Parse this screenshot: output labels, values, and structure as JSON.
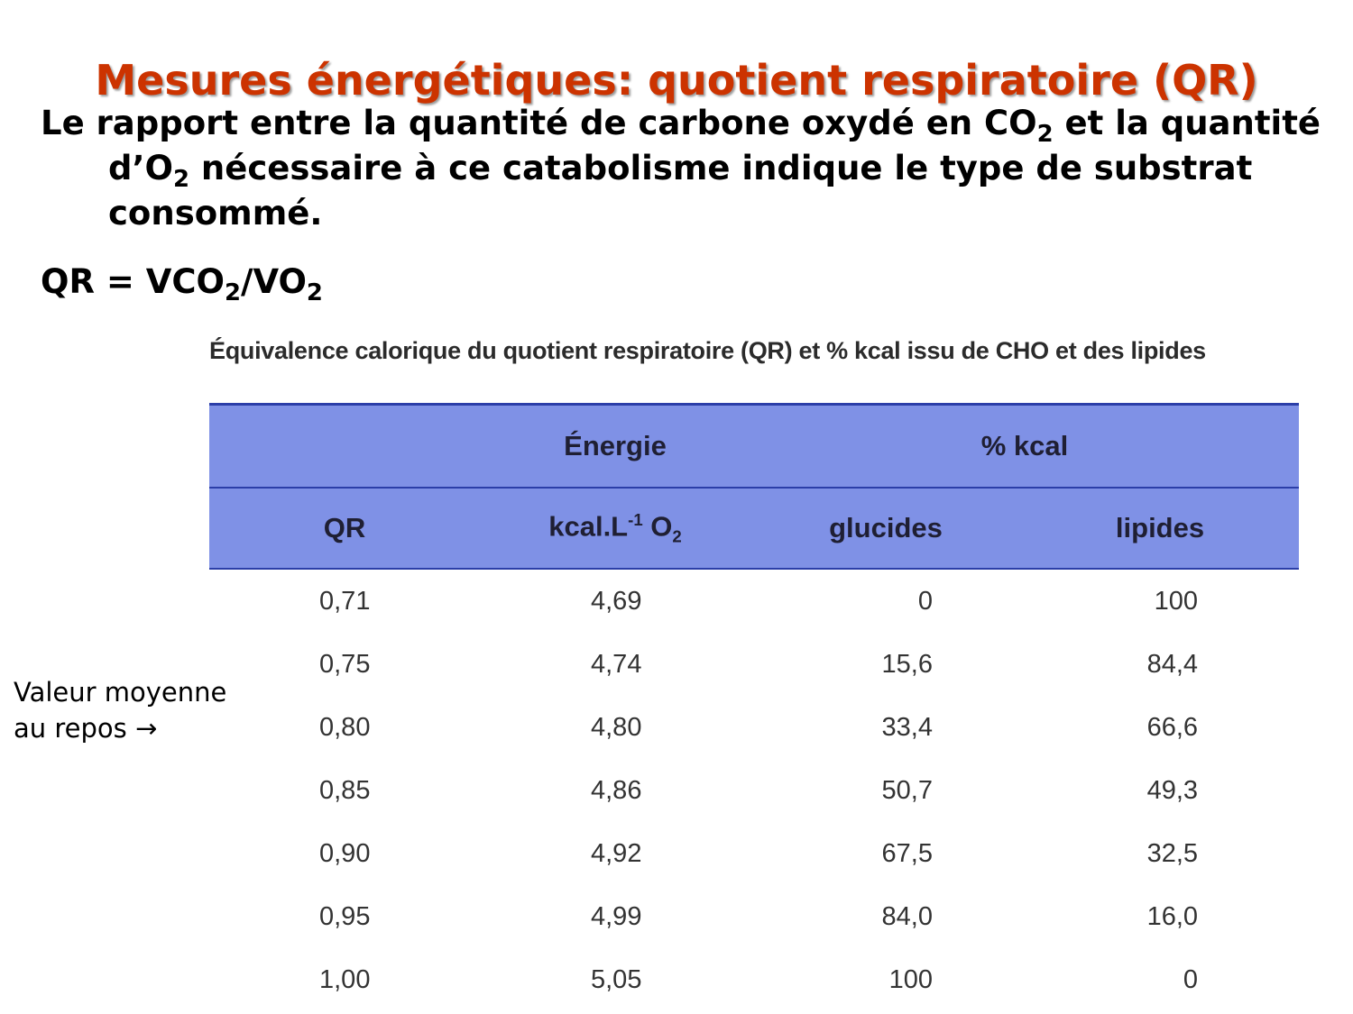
{
  "title": "Mesures énergétiques: quotient respiratoire (QR)",
  "definition": {
    "part1": "Le rapport entre la quantité de carbone oxydé en CO",
    "sub1": "2",
    "part2": " et la quantité d’O",
    "sub2": "2",
    "part3": " nécessaire à ce catabolisme indique le type de substrat consommé."
  },
  "formula": {
    "lhs": "QR = VCO",
    "sub1": "2",
    "mid": "/VO",
    "sub2": "2"
  },
  "table": {
    "caption": "Équivalence calorique du quotient respiratoire (QR) et % kcal issu de CHO et des lipides",
    "group_headers": {
      "energy": "Énergie",
      "percent": "% kcal"
    },
    "column_headers": {
      "qr": "QR",
      "energy_unit_base": "kcal.L",
      "energy_unit_exp": "-1",
      "energy_unit_o": " O",
      "energy_unit_sub": "2",
      "carbs": "glucides",
      "lipids": "lipides"
    },
    "rows": [
      {
        "qr": "0,71",
        "energy": "4,69",
        "carbs": "0",
        "lipids": "100"
      },
      {
        "qr": "0,75",
        "energy": "4,74",
        "carbs": "15,6",
        "lipids": "84,4"
      },
      {
        "qr": "0,80",
        "energy": "4,80",
        "carbs": "33,4",
        "lipids": "66,6"
      },
      {
        "qr": "0,85",
        "energy": "4,86",
        "carbs": "50,7",
        "lipids": "49,3"
      },
      {
        "qr": "0,90",
        "energy": "4,92",
        "carbs": "67,5",
        "lipids": "32,5"
      },
      {
        "qr": "0,95",
        "energy": "4,99",
        "carbs": "84,0",
        "lipids": "16,0"
      },
      {
        "qr": "1,00",
        "energy": "5,05",
        "carbs": "100",
        "lipids": "0"
      }
    ]
  },
  "side_note": {
    "line1": "Valeur moyenne",
    "line2": "au repos",
    "arrow": "→"
  },
  "colors": {
    "title": "#cc3300",
    "table_header_bg": "#7f91e6",
    "table_rule": "#2b3ea8"
  }
}
